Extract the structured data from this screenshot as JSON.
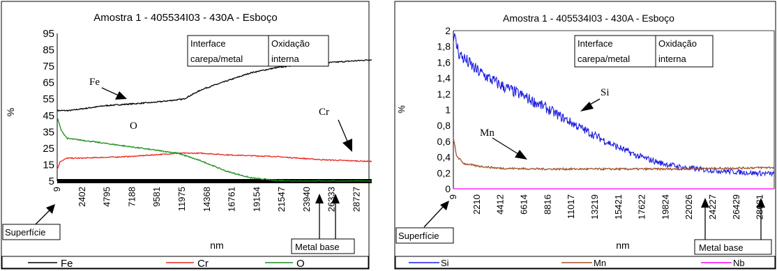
{
  "chart_data": [
    {
      "type": "line",
      "title": "Amostra 1 - 405534I03 - 430A - Esboço",
      "xlabel": "nm",
      "ylabel": "%",
      "y_ticks": [
        "95",
        "85",
        "75",
        "65",
        "55",
        "45",
        "35",
        "25",
        "15",
        "5"
      ],
      "ylim": [
        5,
        95
      ],
      "x_ticks": [
        "9",
        "2402",
        "4795",
        "7188",
        "9581",
        "11975",
        "14368",
        "16761",
        "19154",
        "21547",
        "23940",
        "26333",
        "28727"
      ],
      "xlim": [
        9,
        31120
      ],
      "series": [
        {
          "name": "Fe",
          "color": "#000000",
          "x": [
            9,
            1200,
            4795,
            9581,
            12500,
            14368,
            16761,
            19154,
            21547,
            23940,
            26333,
            28727,
            31120
          ],
          "values": [
            48,
            48,
            51,
            53,
            55,
            61,
            66,
            71,
            74,
            76,
            77,
            78,
            79
          ]
        },
        {
          "name": "Cr",
          "color": "#e8261c",
          "x": [
            9,
            300,
            1000,
            2402,
            7188,
            11975,
            14368,
            16761,
            21547,
            26333,
            31120
          ],
          "values": [
            12,
            17,
            19,
            19,
            20,
            22,
            22,
            21,
            20,
            18,
            17
          ]
        },
        {
          "name": "O",
          "color": "#1a8f1a",
          "x": [
            9,
            400,
            1000,
            2402,
            4795,
            7188,
            9581,
            11975,
            14368,
            16761,
            19154,
            21547,
            23940,
            26333,
            28727,
            31120
          ],
          "values": [
            44,
            36,
            31,
            30,
            28,
            26,
            24,
            22,
            17,
            11,
            7,
            5.5,
            5,
            5,
            5,
            5
          ]
        }
      ],
      "annotations": {
        "interface_label": [
          "Interface",
          "carepa/metal"
        ],
        "oxidation_label": [
          "Oxidação",
          "interna"
        ],
        "surface_label": "Superfície",
        "metal_base_label": "Metal base",
        "fe_label": "Fe",
        "cr_label": "Cr",
        "o_label": "O"
      },
      "legend_position": "bottom"
    },
    {
      "type": "line",
      "title": "Amostra 1 - 405534I03 - 430A - Esboço",
      "xlabel": "nm",
      "ylabel": "%",
      "y_ticks": [
        "2",
        "1,8",
        "1,6",
        "1,4",
        "1,2",
        "1",
        "0,8",
        "0,6",
        "0,4",
        "0,2",
        "0"
      ],
      "ylim": [
        0,
        2
      ],
      "x_ticks": [
        "9",
        "2210",
        "4412",
        "6614",
        "8816",
        "11017",
        "13219",
        "15421",
        "17622",
        "19824",
        "22026",
        "24227",
        "26429",
        "28631"
      ],
      "xlim": [
        9,
        30833
      ],
      "series": [
        {
          "name": "Si",
          "color": "#1a1ae0",
          "x": [
            9,
            600,
            2210,
            4412,
            6614,
            8816,
            11017,
            13219,
            15421,
            17622,
            19824,
            22026,
            24227,
            26429,
            28631,
            30833
          ],
          "values": [
            1.95,
            1.7,
            1.5,
            1.32,
            1.18,
            1.03,
            0.86,
            0.7,
            0.55,
            0.42,
            0.33,
            0.27,
            0.24,
            0.22,
            0.2,
            0.19
          ]
        },
        {
          "name": "Mn",
          "color": "#a0522d",
          "x": [
            9,
            300,
            1000,
            2210,
            4412,
            8816,
            13219,
            17622,
            22026,
            26429,
            30833
          ],
          "values": [
            0.65,
            0.42,
            0.32,
            0.29,
            0.26,
            0.25,
            0.25,
            0.25,
            0.25,
            0.26,
            0.27
          ]
        },
        {
          "name": "Nb",
          "color": "#ff00ff",
          "x": [
            9,
            30833
          ],
          "values": [
            0,
            0
          ]
        }
      ],
      "annotations": {
        "interface_label": [
          "Interface",
          "carepa/metal"
        ],
        "oxidation_label": [
          "Oxidação",
          "interna"
        ],
        "surface_label": "Superfície",
        "metal_base_label": "Metal base",
        "si_label": "Si",
        "mn_label": "Mn"
      },
      "legend_position": "bottom"
    }
  ]
}
